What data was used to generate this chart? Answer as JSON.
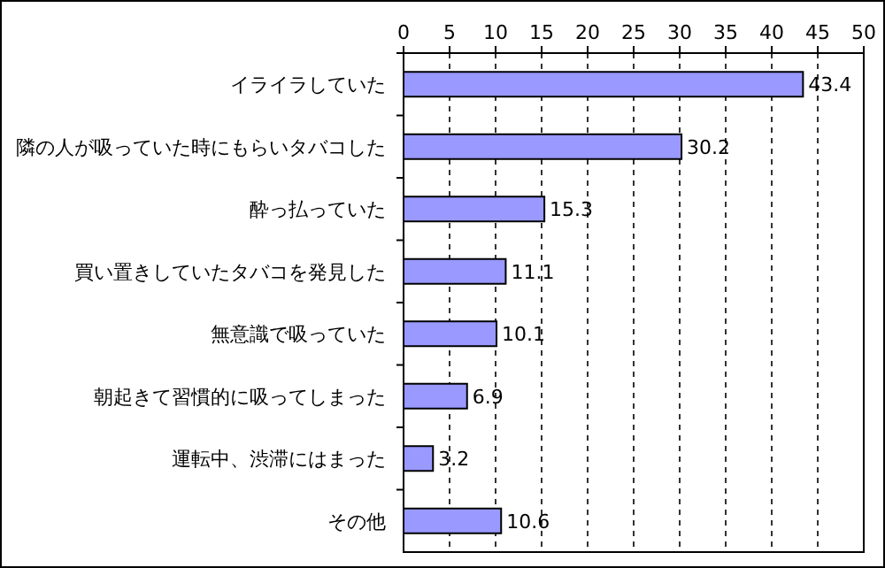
{
  "chart_data": {
    "type": "bar",
    "orientation": "horizontal",
    "categories": [
      "イライラしていた",
      "隣の人が吸っていた時にもらいタバコした",
      "酔っ払っていた",
      "買い置きしていたタバコを発見した",
      "無意識で吸っていた",
      "朝起きて習慣的に吸ってしまった",
      "運転中、渋滞にはまった",
      "その他"
    ],
    "values": [
      43.4,
      30.2,
      15.3,
      11.1,
      10.1,
      6.9,
      3.2,
      10.6
    ],
    "color": "#9999ff",
    "xlim": [
      0,
      50
    ],
    "xticks": [
      0,
      5,
      10,
      15,
      20,
      25,
      30,
      35,
      40,
      45,
      50
    ],
    "data_labels": true,
    "grid": "x"
  }
}
